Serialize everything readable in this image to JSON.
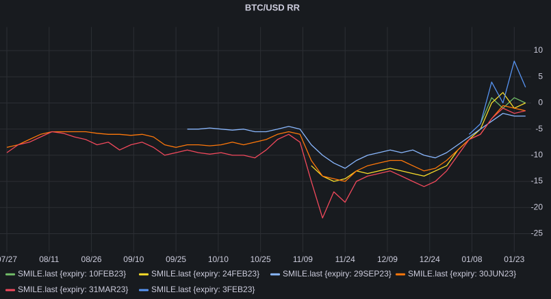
{
  "chart_data": {
    "type": "line",
    "title": "BTC/USD RR",
    "x": [
      0,
      4,
      8,
      12,
      16,
      20,
      24,
      28,
      32,
      36,
      40,
      44,
      48,
      52,
      56,
      60,
      64,
      68,
      72,
      76,
      80,
      84,
      88,
      92,
      96,
      100,
      104,
      108,
      112,
      116,
      120,
      124,
      128,
      132,
      136,
      140,
      144,
      148,
      152,
      156,
      160,
      164,
      168,
      172,
      176,
      180,
      184
    ],
    "xlim": [
      0,
      186
    ],
    "xticks": [
      {
        "value": 0,
        "label": "07/27"
      },
      {
        "value": 15,
        "label": "08/11"
      },
      {
        "value": 30,
        "label": "08/26"
      },
      {
        "value": 45,
        "label": "09/10"
      },
      {
        "value": 60,
        "label": "09/25"
      },
      {
        "value": 75,
        "label": "10/10"
      },
      {
        "value": 90,
        "label": "10/25"
      },
      {
        "value": 105,
        "label": "11/09"
      },
      {
        "value": 120,
        "label": "11/24"
      },
      {
        "value": 135,
        "label": "12/09"
      },
      {
        "value": 150,
        "label": "12/24"
      },
      {
        "value": 165,
        "label": "01/08"
      },
      {
        "value": 180,
        "label": "01/23"
      }
    ],
    "ylim": [
      -28,
      14
    ],
    "yticks": [
      -25,
      -20,
      -15,
      -10,
      -5,
      0,
      5,
      10
    ],
    "y_axis_side": "right",
    "grid": true,
    "series": [
      {
        "name": "SMILE.last {expiry: 10FEB23}",
        "color": "#73bf69",
        "values": [
          null,
          null,
          null,
          null,
          null,
          null,
          null,
          null,
          null,
          null,
          null,
          null,
          null,
          null,
          null,
          null,
          null,
          null,
          null,
          null,
          null,
          null,
          null,
          null,
          null,
          null,
          null,
          null,
          null,
          null,
          null,
          null,
          null,
          null,
          null,
          null,
          null,
          null,
          null,
          null,
          null,
          null,
          -4,
          1,
          -1,
          1,
          0
        ]
      },
      {
        "name": "SMILE.last {expiry: 24FEB23}",
        "color": "#fade2a",
        "values": [
          null,
          null,
          null,
          null,
          null,
          null,
          null,
          null,
          null,
          null,
          null,
          null,
          null,
          null,
          null,
          null,
          null,
          null,
          null,
          null,
          null,
          null,
          null,
          null,
          null,
          null,
          null,
          -12,
          -14,
          -15,
          -14.5,
          -13,
          -13.5,
          -13,
          -12.5,
          -13,
          -13.5,
          -14,
          -13,
          -12,
          -9,
          -7,
          -5,
          0,
          2,
          -1,
          0
        ]
      },
      {
        "name": "SMILE.last {expiry: 29SEP23}",
        "color": "#8ab8ff",
        "values": [
          null,
          null,
          null,
          null,
          null,
          null,
          null,
          null,
          null,
          null,
          null,
          null,
          null,
          null,
          null,
          null,
          -5,
          -5,
          -4.8,
          -5,
          -5.2,
          -5,
          -5.5,
          -5.5,
          -5,
          -4.5,
          -5,
          -8,
          -10,
          -11.5,
          -12.5,
          -11,
          -10,
          -9.5,
          -9,
          -9.5,
          -9,
          -10,
          -10.5,
          -9.5,
          -8,
          -6.5,
          -5,
          -3.5,
          -2,
          -2.5,
          -2.5
        ]
      },
      {
        "name": "SMILE.last {expiry: 30JUN23}",
        "color": "#ff780a",
        "values": [
          -8.5,
          -8,
          -7,
          -6,
          -5.5,
          -5.5,
          -5.5,
          -5.5,
          -5.8,
          -6,
          -6,
          -6.2,
          -6,
          -6.5,
          -8,
          -8.5,
          -8,
          -8,
          -8.2,
          -8,
          -7.5,
          -8,
          -7.5,
          -7,
          -6,
          -5.5,
          -6,
          -11,
          -14,
          -14.5,
          -15,
          -13,
          -12,
          -11.5,
          -11,
          -11,
          -12,
          -13,
          -12.5,
          -11,
          -9,
          -7,
          -6,
          -3,
          -0.5,
          -1,
          -1.5
        ]
      },
      {
        "name": "SMILE.last {expiry: 31MAR23}",
        "color": "#f2495c",
        "values": [
          -9.5,
          -8,
          -7.5,
          -6.5,
          -5.5,
          -5.8,
          -6.5,
          -7,
          -8,
          -7.5,
          -9,
          -8,
          -7.5,
          -8.5,
          -10,
          -9.5,
          -9,
          -9.5,
          -9.8,
          -9.5,
          -10,
          -10,
          -10.5,
          -9,
          -7,
          -6,
          -7.5,
          -15,
          -22,
          -17,
          -19,
          -15,
          -14,
          -13.5,
          -13,
          -14,
          -15,
          -16,
          -15,
          -13,
          -10,
          -7,
          -6,
          -3,
          -1,
          -2,
          -1.5
        ]
      },
      {
        "name": "SMILE.last {expiry: 3FEB23}",
        "color": "#5794f2",
        "values": [
          null,
          null,
          null,
          null,
          null,
          null,
          null,
          null,
          null,
          null,
          null,
          null,
          null,
          null,
          null,
          null,
          null,
          null,
          null,
          null,
          null,
          null,
          null,
          null,
          null,
          null,
          null,
          null,
          null,
          null,
          null,
          null,
          null,
          null,
          null,
          null,
          null,
          null,
          null,
          null,
          null,
          -6,
          -4,
          4,
          0,
          8,
          3
        ]
      }
    ]
  }
}
